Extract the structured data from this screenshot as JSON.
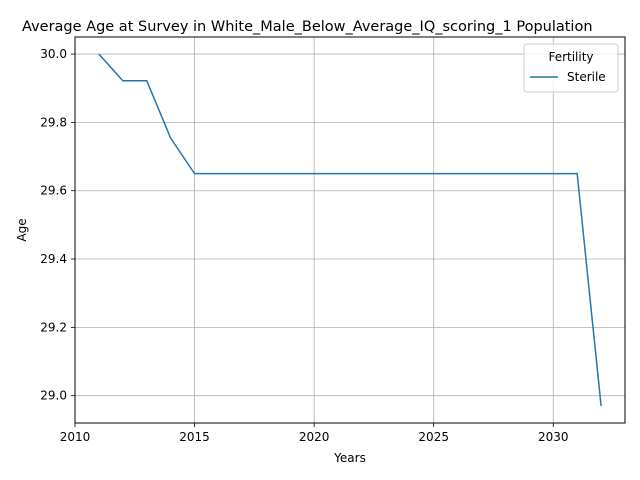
{
  "chart_data": {
    "type": "line",
    "title": "Average Age at Survey in White_Male_Below_Average_IQ_scoring_1 Population",
    "xlabel": "Years",
    "ylabel": "Age",
    "xlim": [
      2010,
      2033
    ],
    "ylim": [
      28.92,
      30.05
    ],
    "xticks": [
      2010,
      2015,
      2020,
      2025,
      2030
    ],
    "yticks": [
      29.0,
      29.2,
      29.4,
      29.6,
      29.8,
      30.0
    ],
    "grid": true,
    "legend": {
      "title": "Fertility",
      "placement": "top-right"
    },
    "series": [
      {
        "name": "Sterile",
        "color": "#1f77b4",
        "x": [
          2011,
          2012,
          2013,
          2014,
          2015,
          2016,
          2017,
          2018,
          2019,
          2020,
          2021,
          2022,
          2023,
          2024,
          2025,
          2026,
          2027,
          2028,
          2029,
          2030,
          2031,
          2032
        ],
        "y": [
          30.0,
          29.922,
          29.922,
          29.754,
          29.65,
          29.65,
          29.65,
          29.65,
          29.65,
          29.65,
          29.65,
          29.65,
          29.65,
          29.65,
          29.65,
          29.65,
          29.65,
          29.65,
          29.65,
          29.65,
          29.65,
          28.97
        ]
      }
    ]
  }
}
